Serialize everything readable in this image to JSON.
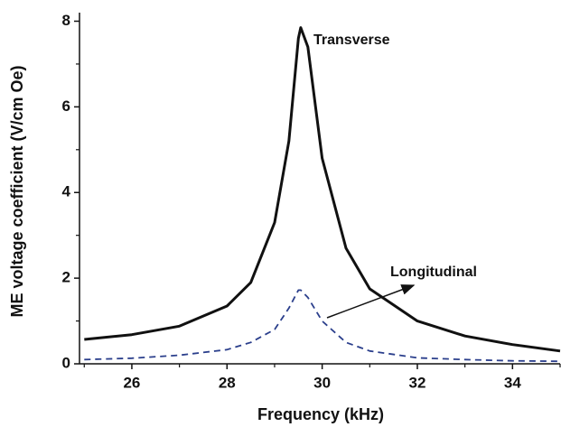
{
  "chart_data": {
    "type": "line",
    "x_label": "Frequency (kHz)",
    "y_label": "ME voltage coefficient (V/cm Oe)",
    "x": [
      25,
      26,
      27,
      28,
      28.5,
      29,
      29.3,
      29.5,
      29.55,
      29.7,
      30,
      30.5,
      31,
      32,
      33,
      34,
      35
    ],
    "series": [
      {
        "name": "Transverse",
        "color": "#111111",
        "dash": "solid",
        "values": [
          0.57,
          0.68,
          0.88,
          1.35,
          1.9,
          3.3,
          5.2,
          7.6,
          7.85,
          7.4,
          4.8,
          2.7,
          1.75,
          1.0,
          0.65,
          0.45,
          0.3
        ]
      },
      {
        "name": "Longitudinal",
        "color": "#2b3f8c",
        "dash": "dashed",
        "values": [
          0.1,
          0.13,
          0.2,
          0.33,
          0.5,
          0.8,
          1.3,
          1.72,
          1.72,
          1.55,
          1.0,
          0.5,
          0.3,
          0.14,
          0.1,
          0.07,
          0.06
        ]
      }
    ],
    "xlim": [
      24.9,
      35
    ],
    "xticks": [
      26,
      28,
      30,
      32,
      34
    ],
    "xminorticks": [
      25,
      27,
      29,
      31,
      33,
      35
    ],
    "ylim": [
      0,
      8.2
    ],
    "yticks": [
      0,
      2,
      4,
      6,
      8
    ],
    "yminorticks": [
      1,
      3,
      5,
      7
    ]
  }
}
